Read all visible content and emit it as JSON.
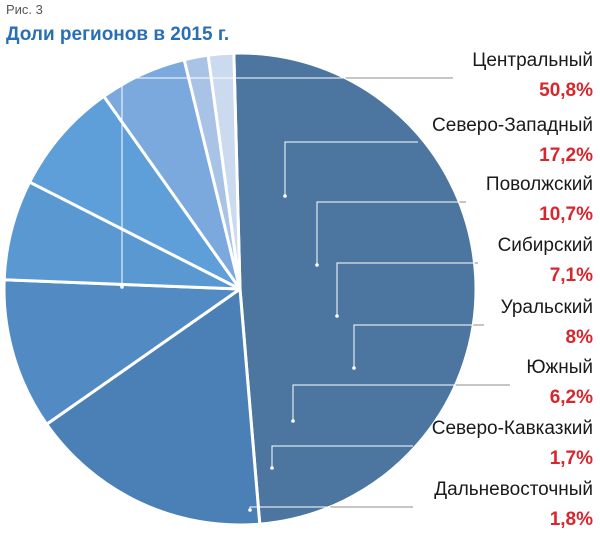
{
  "figure": {
    "caption": "Рис. 3",
    "title": "Доли регионов в 2015 г."
  },
  "chart_data": {
    "type": "pie",
    "title": "Доли регионов в 2015 г.",
    "slices": [
      {
        "label": "Центральный",
        "value": 50.8,
        "display": "50,8%",
        "color": "#4c76a0"
      },
      {
        "label": "Северо-Западный",
        "value": 17.2,
        "display": "17,2%",
        "color": "#4a80b5"
      },
      {
        "label": "Поволжский",
        "value": 10.7,
        "display": "10,7%",
        "color": "#528bc4"
      },
      {
        "label": "Сибирский",
        "value": 7.1,
        "display": "7,1%",
        "color": "#5a98d2"
      },
      {
        "label": "Уральский",
        "value": 8,
        "display": "8%",
        "color": "#5e9ed9"
      },
      {
        "label": "Южный",
        "value": 6.2,
        "display": "6,2%",
        "color": "#7ba9de"
      },
      {
        "label": "Северо-Кавказкий",
        "value": 1.7,
        "display": "1,7%",
        "color": "#a8c3e6"
      },
      {
        "label": "Дальневосточный",
        "value": 1.8,
        "display": "1,8%",
        "color": "#cbdaef"
      }
    ],
    "value_color": "#d7262e",
    "legend_position": "right"
  }
}
